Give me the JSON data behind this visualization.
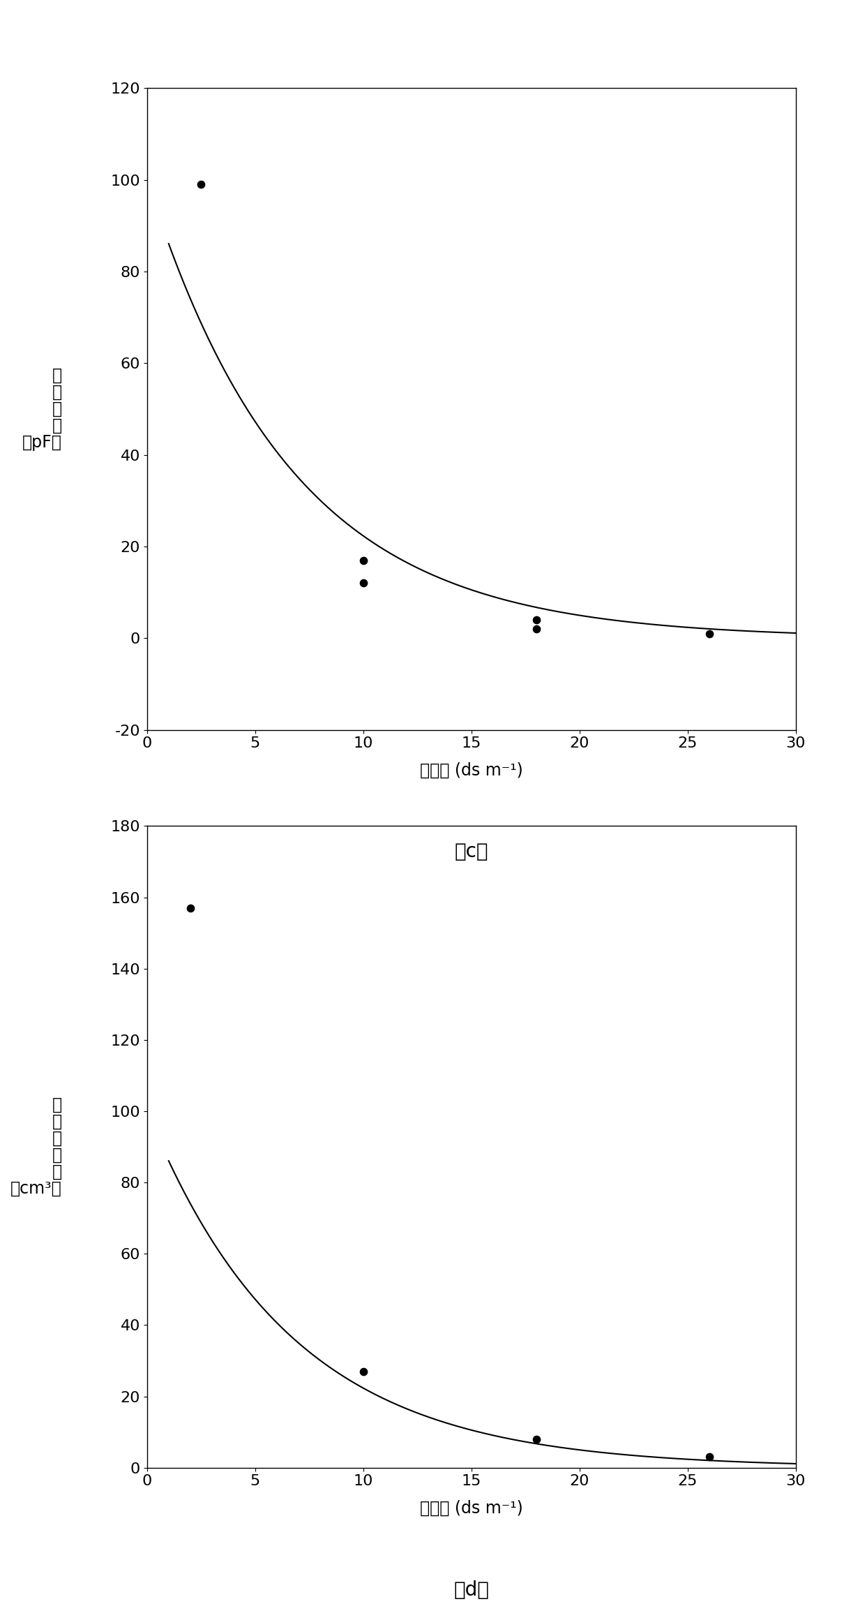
{
  "chart_c": {
    "scatter_x": [
      2.5,
      10.0,
      10.0,
      18.0,
      18.0,
      26.0
    ],
    "scatter_y": [
      99.0,
      17.0,
      12.0,
      4.0,
      2.0,
      1.0
    ],
    "ylabel_chars": [
      "生",
      "理",
      "电",
      "容",
      "（pF）"
    ],
    "xlabel": "盐浓度 (ds m⁻¹)",
    "label": "（c）",
    "xlim": [
      0,
      30
    ],
    "ylim": [
      -20,
      120
    ],
    "yticks": [
      -20,
      0,
      20,
      40,
      60,
      80,
      100,
      120
    ],
    "xticks": [
      0,
      5,
      10,
      15,
      20,
      25,
      30
    ]
  },
  "chart_d": {
    "scatter_x": [
      2.0,
      10.0,
      18.0,
      26.0
    ],
    "scatter_y": [
      157.0,
      27.0,
      8.0,
      3.0
    ],
    "ylabel_chars": [
      "叶",
      "片",
      "紧",
      "张",
      "度",
      "（cm³）"
    ],
    "xlabel": "盐浓度 (ds m⁻¹)",
    "label": "（d）",
    "xlim": [
      0,
      30
    ],
    "ylim": [
      0,
      180
    ],
    "yticks": [
      0,
      20,
      40,
      60,
      80,
      100,
      120,
      140,
      160,
      180
    ],
    "xticks": [
      0,
      5,
      10,
      15,
      20,
      25,
      30
    ]
  },
  "figure_bg": "#ffffff",
  "scatter_color": "#000000",
  "line_color": "#000000",
  "scatter_size": 55,
  "label_fontsize": 20,
  "tick_fontsize": 16,
  "axis_label_fontsize": 17,
  "ylabel_fontsize": 17
}
